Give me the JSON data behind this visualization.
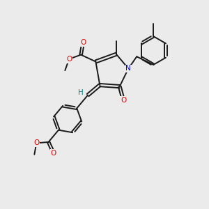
{
  "background_color": "#ebebeb",
  "line_color": "#1a1a1a",
  "bond_width": 1.4,
  "atom_colors": {
    "O": "#e00000",
    "N": "#0000cc",
    "H": "#008080",
    "C": "#1a1a1a"
  },
  "font_size_atom": 7.5
}
